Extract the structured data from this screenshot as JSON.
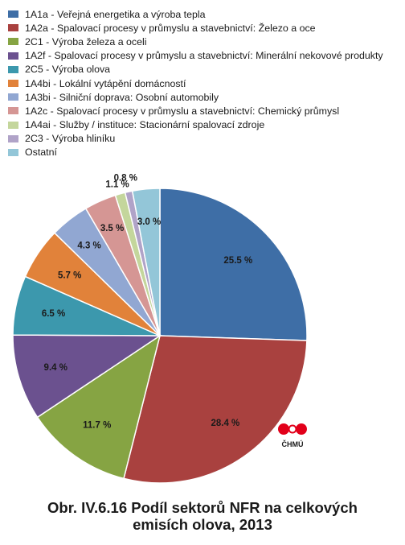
{
  "chart_data": {
    "type": "pie",
    "title": "",
    "legend_position": "top-left",
    "slices": [
      {
        "label": "1A1a - Veřejná energetika a výroba tepla",
        "value": 25.5,
        "value_label": "25.5 %",
        "color": "#3e6ea6"
      },
      {
        "label": "1A2a - Spalovací procesy v průmyslu a stavebnictví: Železo a oce",
        "value": 28.4,
        "value_label": "28.4 %",
        "color": "#a9413f"
      },
      {
        "label": "2C1 - Výroba železa a oceli",
        "value": 11.7,
        "value_label": "11.7 %",
        "color": "#86a443"
      },
      {
        "label": "1A2f - Spalovací procesy v průmyslu a stavebnictví: Minerální nekovové produkty",
        "value": 9.4,
        "value_label": "9.4 %",
        "color": "#6b518f"
      },
      {
        "label": "2C5 - Výroba olova",
        "value": 6.5,
        "value_label": "6.5 %",
        "color": "#3c98ad"
      },
      {
        "label": "1A4bi - Lokální vytápění domácností",
        "value": 5.7,
        "value_label": "5.7 %",
        "color": "#e1823a"
      },
      {
        "label": "1A3bi - Silniční doprava: Osobní automobily",
        "value": 4.3,
        "value_label": "4.3 %",
        "color": "#91a7d2"
      },
      {
        "label": "1A2c - Spalovací procesy v průmyslu a stavebnictví: Chemický průmysl",
        "value": 3.5,
        "value_label": "3.5 %",
        "color": "#d59694"
      },
      {
        "label": "1A4ai - Služby / instituce: Stacionární spalovací zdroje",
        "value": 1.1,
        "value_label": "1.1 %",
        "color": "#c4d69c"
      },
      {
        "label": "2C3 - Výroba hliníku",
        "value": 0.8,
        "value_label": "0.8 %",
        "color": "#b0a3c8"
      },
      {
        "label": "Ostatní",
        "value": 3.0,
        "value_label": "3.0 %",
        "color": "#93c6d8"
      }
    ]
  },
  "logo": {
    "text": "ČHMÚ",
    "color": "#e2001a"
  },
  "caption": {
    "line1": "Obr. IV.6.16  Podíl sektorů NFR na celkových",
    "line2": "emisích olova, 2013"
  }
}
